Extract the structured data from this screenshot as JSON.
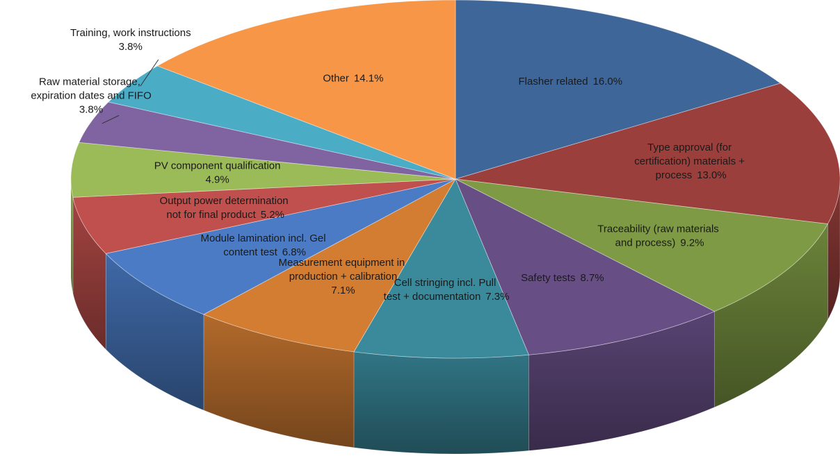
{
  "chart_data": {
    "type": "pie",
    "categories": [
      "Flasher related",
      "Type approval (for certification) materials + process",
      "Traceability (raw materials and process)",
      "Safety tests",
      "Cell stringing incl. Pull test + documentation",
      "Measurement equipment in production + calibration",
      "Module lamination incl. Gel content test",
      "Output power determination not for final product",
      "PV component qualification",
      "Raw material storage, expiration dates and FIFO",
      "Training, work instructions",
      "Other"
    ],
    "values": [
      16.0,
      13.0,
      9.2,
      8.7,
      7.3,
      7.1,
      6.8,
      5.2,
      4.9,
      3.8,
      3.8,
      14.1
    ],
    "value_labels": [
      "16.0%",
      "13.0%",
      "9.2%",
      "8.7%",
      "7.3%",
      "7.1%",
      "6.8%",
      "5.2%",
      "4.9%",
      "3.8%",
      "3.8%",
      "14.1%"
    ],
    "colors": [
      "#3f6699",
      "#9b3f3c",
      "#7e9a44",
      "#674f86",
      "#3a8a9c",
      "#d27d32",
      "#4a7bc4",
      "#c0504d",
      "#9bbb59",
      "#8064a2",
      "#4bacc6",
      "#f79646"
    ]
  }
}
